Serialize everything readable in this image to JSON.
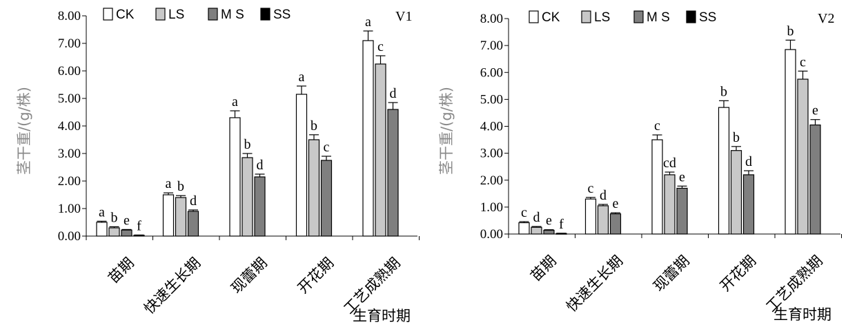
{
  "chart_data": [
    {
      "type": "bar",
      "panel_label": "V1",
      "ylabel": "茎干重/(g/株)",
      "xlabel": "生育时期",
      "categories": [
        "苗期",
        "快速生长期",
        "现蕾期",
        "开花期",
        "工艺成熟期"
      ],
      "ylim": [
        0,
        8
      ],
      "yticks": [
        "0.00",
        "1.00",
        "2.00",
        "3.00",
        "4.00",
        "5.00",
        "6.00",
        "7.00",
        "8.00"
      ],
      "legend": {
        "placement": "top-left",
        "entries": [
          "CK",
          "LS",
          "M S",
          "SS"
        ]
      },
      "grid": false,
      "series": [
        {
          "name": "CK",
          "color": "#ffffff",
          "values": [
            0.5,
            1.5,
            4.3,
            5.15,
            7.1
          ],
          "errors": [
            0.04,
            0.07,
            0.25,
            0.3,
            0.35
          ],
          "letters": [
            "a",
            "a",
            "a",
            "a",
            "a"
          ]
        },
        {
          "name": "LS",
          "color": "#c8c8c8",
          "values": [
            0.3,
            1.4,
            2.85,
            3.5,
            6.25
          ],
          "errors": [
            0.04,
            0.07,
            0.15,
            0.18,
            0.3
          ],
          "letters": [
            "b",
            "b",
            "b",
            "b",
            "c"
          ]
        },
        {
          "name": "M S",
          "color": "#7f7f7f",
          "values": [
            0.22,
            0.9,
            2.15,
            2.75,
            4.6
          ],
          "errors": [
            0.02,
            0.05,
            0.1,
            0.15,
            0.25
          ],
          "letters": [
            "e",
            "d",
            "d",
            "c",
            "d"
          ]
        },
        {
          "name": "SS",
          "color": "#000000",
          "values": [
            0.03,
            null,
            null,
            null,
            null
          ],
          "errors": [
            0.01,
            null,
            null,
            null,
            null
          ],
          "letters": [
            "f",
            "",
            "",
            "",
            ""
          ]
        }
      ]
    },
    {
      "type": "bar",
      "panel_label": "V2",
      "ylabel": "茎干重/(g/株)",
      "xlabel": "生育时期",
      "categories": [
        "苗期",
        "快速生长期",
        "现蕾期",
        "开花期",
        "工艺成熟期"
      ],
      "ylim": [
        0,
        8
      ],
      "yticks": [
        "0.00",
        "1.00",
        "2.00",
        "3.00",
        "4.00",
        "5.00",
        "6.00",
        "7.00",
        "8.00"
      ],
      "legend": {
        "placement": "top-left",
        "entries": [
          "CK",
          "LS",
          "M S",
          "SS"
        ]
      },
      "grid": false,
      "series": [
        {
          "name": "CK",
          "color": "#ffffff",
          "values": [
            0.42,
            1.3,
            3.5,
            4.7,
            6.85
          ],
          "errors": [
            0.04,
            0.06,
            0.18,
            0.25,
            0.35
          ],
          "letters": [
            "c",
            "c",
            "c",
            "b",
            "b"
          ]
        },
        {
          "name": "LS",
          "color": "#c8c8c8",
          "values": [
            0.25,
            1.05,
            2.2,
            3.1,
            5.75
          ],
          "errors": [
            0.03,
            0.05,
            0.1,
            0.15,
            0.3
          ],
          "letters": [
            "d",
            "d",
            "cd",
            "b",
            "c"
          ]
        },
        {
          "name": "M S",
          "color": "#7f7f7f",
          "values": [
            0.14,
            0.75,
            1.7,
            2.2,
            4.05
          ],
          "errors": [
            0.02,
            0.04,
            0.08,
            0.15,
            0.2
          ],
          "letters": [
            "e",
            "e",
            "e",
            "d",
            "e"
          ]
        },
        {
          "name": "SS",
          "color": "#000000",
          "values": [
            0.02,
            null,
            null,
            null,
            null
          ],
          "errors": [
            0.01,
            null,
            null,
            null,
            null
          ],
          "letters": [
            "f",
            "",
            "",
            "",
            ""
          ]
        }
      ]
    }
  ]
}
